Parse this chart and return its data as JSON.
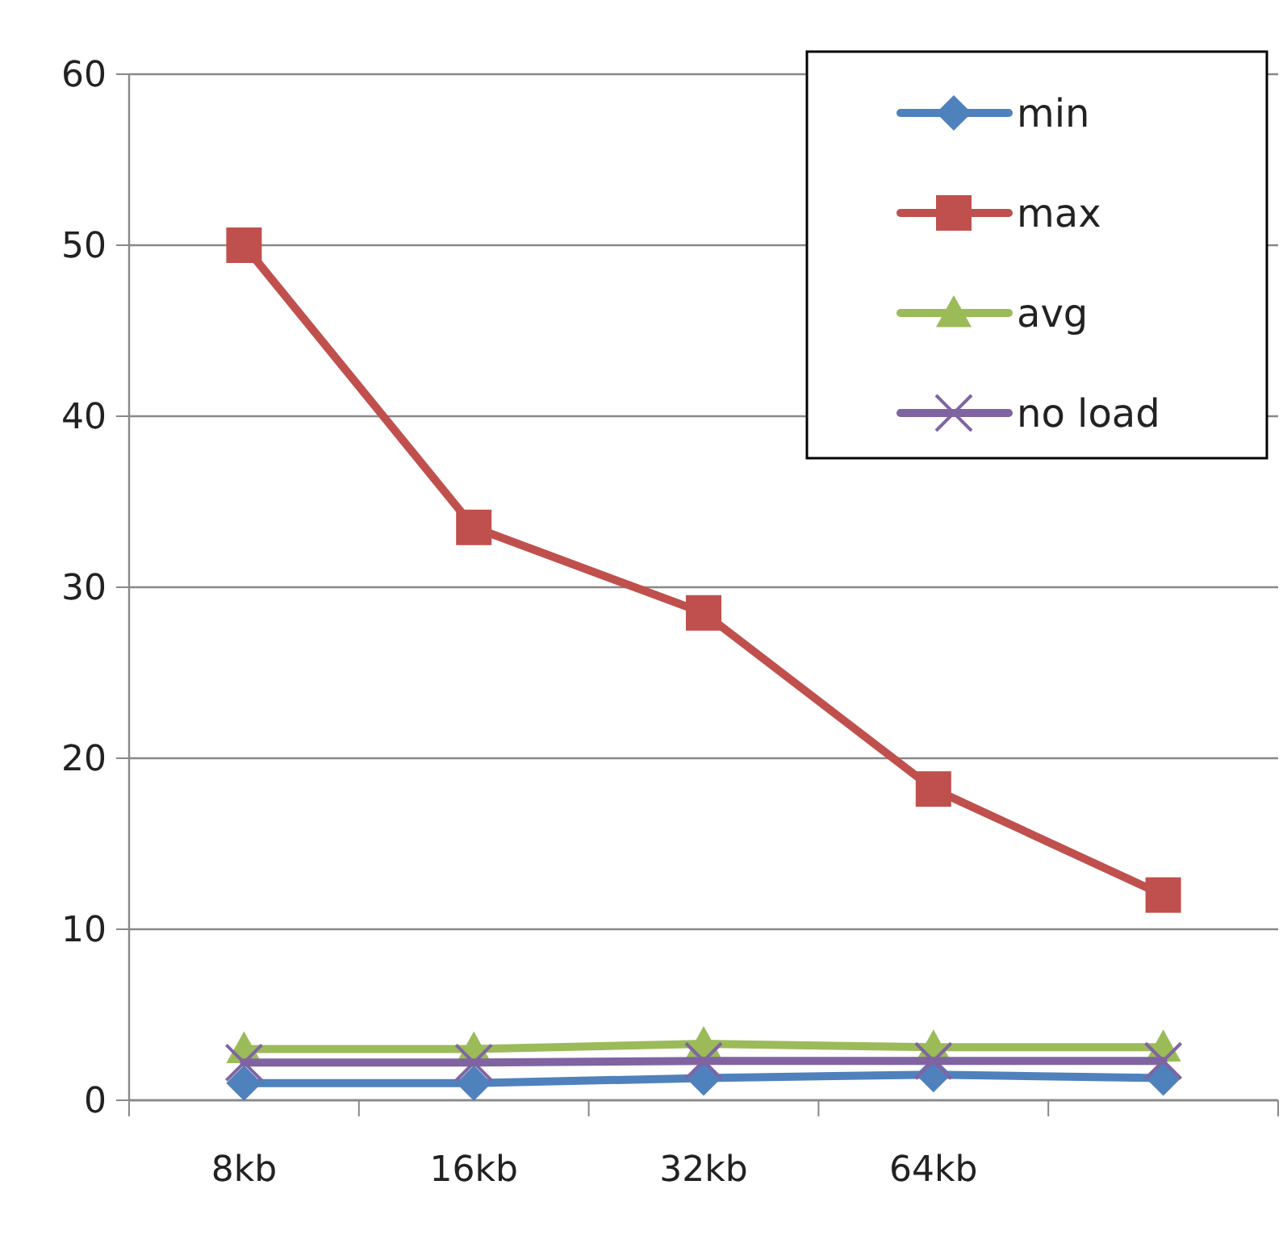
{
  "chart_data": {
    "type": "line",
    "categories": [
      "8kb",
      "16kb",
      "32kb",
      "64kb",
      null
    ],
    "series": [
      {
        "name": "min",
        "color": "#4f81bd",
        "marker": "diamond",
        "values": [
          1.0,
          1.0,
          1.3,
          1.5,
          1.3
        ]
      },
      {
        "name": "max",
        "color": "#c0504d",
        "marker": "square",
        "values": [
          50,
          33.5,
          28.5,
          18.2,
          12
        ]
      },
      {
        "name": "avg",
        "color": "#9bbb59",
        "marker": "triangle",
        "values": [
          3.0,
          3.0,
          3.3,
          3.1,
          3.1
        ]
      },
      {
        "name": "no load",
        "color": "#8064a2",
        "marker": "cross",
        "values": [
          2.2,
          2.2,
          2.3,
          2.3,
          2.3
        ]
      }
    ],
    "ylim": [
      0,
      60
    ],
    "yticks": [
      0,
      10,
      20,
      30,
      40,
      50,
      60
    ],
    "grid": "y",
    "legend": "top right"
  }
}
